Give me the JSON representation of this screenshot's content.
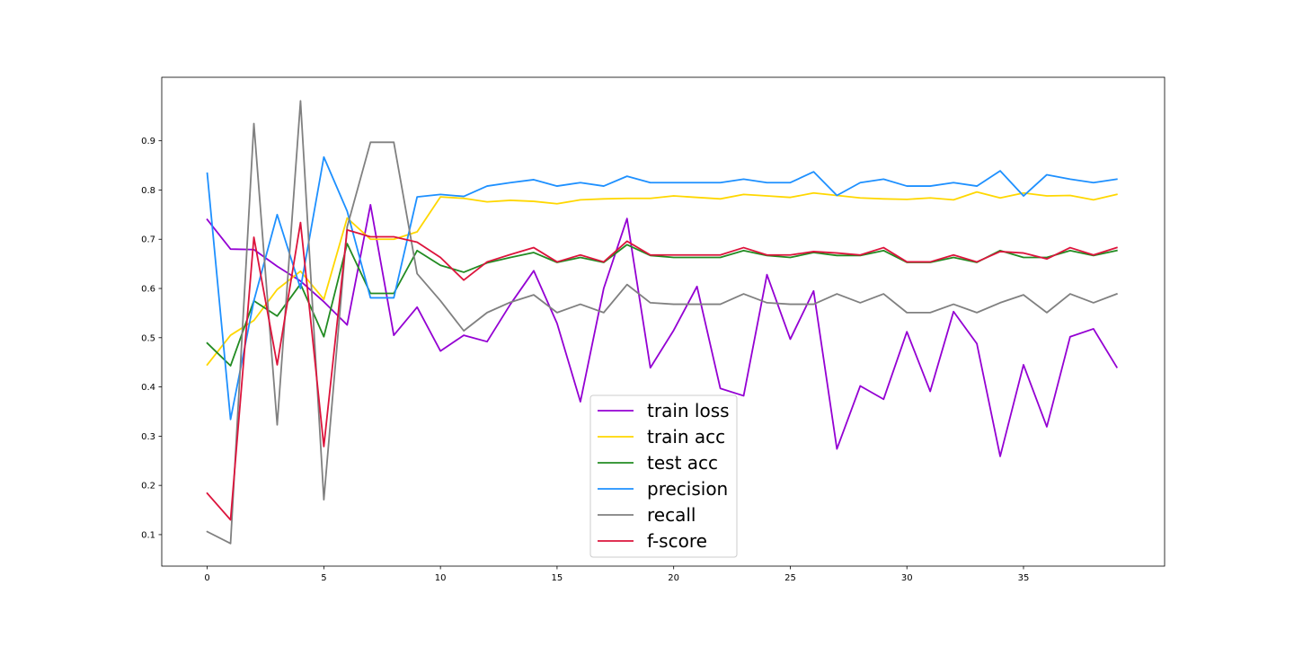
{
  "chart_data": {
    "type": "line",
    "title": "",
    "xlabel": "",
    "ylabel": "",
    "xlim": [
      -1.95,
      41.05
    ],
    "ylim": [
      0.036,
      1.029
    ],
    "grid": false,
    "legend_position": "lower-center",
    "x_ticks": [
      0,
      5,
      10,
      15,
      20,
      25,
      30,
      35
    ],
    "y_ticks": [
      0.1,
      0.2,
      0.3,
      0.4,
      0.5,
      0.6,
      0.7,
      0.8,
      0.9
    ],
    "x_tick_labels": [
      "0",
      "5",
      "10",
      "15",
      "20",
      "25",
      "30",
      "35"
    ],
    "y_tick_labels": [
      "0.1",
      "0.2",
      "0.3",
      "0.4",
      "0.5",
      "0.6",
      "0.7",
      "0.8",
      "0.9"
    ],
    "x": [
      0,
      1,
      2,
      3,
      4,
      5,
      6,
      7,
      8,
      9,
      10,
      11,
      12,
      13,
      14,
      15,
      16,
      17,
      18,
      19,
      20,
      21,
      22,
      23,
      24,
      25,
      26,
      27,
      28,
      29,
      30,
      31,
      32,
      33,
      34,
      35,
      36,
      37,
      38,
      39
    ],
    "series": [
      {
        "name": "train loss",
        "color": "#9400D3",
        "values": [
          0.74,
          0.68,
          0.679,
          0.645,
          0.615,
          0.573,
          0.526,
          0.77,
          0.505,
          0.562,
          0.473,
          0.505,
          0.492,
          0.568,
          0.636,
          0.529,
          0.37,
          0.6,
          0.742,
          0.439,
          0.515,
          0.604,
          0.397,
          0.382,
          0.628,
          0.497,
          0.595,
          0.274,
          0.402,
          0.375,
          0.512,
          0.391,
          0.553,
          0.488,
          0.259,
          0.445,
          0.319,
          0.502,
          0.518,
          0.44
        ]
      },
      {
        "name": "train acc",
        "color": "#FFD700",
        "values": [
          0.445,
          0.505,
          0.535,
          0.598,
          0.635,
          0.578,
          0.743,
          0.7,
          0.7,
          0.715,
          0.786,
          0.783,
          0.776,
          0.779,
          0.777,
          0.772,
          0.78,
          0.782,
          0.783,
          0.783,
          0.788,
          0.785,
          0.782,
          0.791,
          0.788,
          0.785,
          0.794,
          0.789,
          0.784,
          0.782,
          0.781,
          0.784,
          0.78,
          0.796,
          0.784,
          0.794,
          0.788,
          0.789,
          0.78,
          0.791
        ]
      },
      {
        "name": "test acc",
        "color": "#228B22",
        "values": [
          0.489,
          0.443,
          0.575,
          0.544,
          0.609,
          0.502,
          0.691,
          0.59,
          0.59,
          0.677,
          0.647,
          0.633,
          0.652,
          0.663,
          0.673,
          0.653,
          0.663,
          0.653,
          0.689,
          0.667,
          0.663,
          0.663,
          0.663,
          0.677,
          0.667,
          0.663,
          0.673,
          0.667,
          0.667,
          0.677,
          0.653,
          0.653,
          0.663,
          0.653,
          0.677,
          0.663,
          0.663,
          0.677,
          0.667,
          0.677
        ]
      },
      {
        "name": "precision",
        "color": "#1E90FF",
        "values": [
          0.834,
          0.334,
          0.575,
          0.75,
          0.6,
          0.867,
          0.757,
          0.581,
          0.581,
          0.786,
          0.791,
          0.787,
          0.808,
          0.815,
          0.821,
          0.808,
          0.815,
          0.808,
          0.828,
          0.815,
          0.815,
          0.815,
          0.815,
          0.822,
          0.815,
          0.815,
          0.837,
          0.789,
          0.815,
          0.822,
          0.808,
          0.808,
          0.815,
          0.808,
          0.839,
          0.788,
          0.831,
          0.822,
          0.815,
          0.822
        ]
      },
      {
        "name": "recall",
        "color": "#808080",
        "values": [
          0.106,
          0.082,
          0.935,
          0.323,
          0.981,
          0.171,
          0.725,
          0.897,
          0.897,
          0.63,
          0.575,
          0.514,
          0.551,
          0.572,
          0.587,
          0.551,
          0.568,
          0.551,
          0.608,
          0.571,
          0.568,
          0.568,
          0.568,
          0.589,
          0.571,
          0.568,
          0.568,
          0.589,
          0.571,
          0.589,
          0.551,
          0.551,
          0.568,
          0.551,
          0.571,
          0.587,
          0.551,
          0.589,
          0.571,
          0.589
        ]
      },
      {
        "name": "f-score",
        "color": "#DC143C",
        "values": [
          0.184,
          0.13,
          0.704,
          0.445,
          0.734,
          0.279,
          0.719,
          0.705,
          0.705,
          0.694,
          0.663,
          0.617,
          0.654,
          0.669,
          0.683,
          0.654,
          0.668,
          0.654,
          0.696,
          0.668,
          0.668,
          0.668,
          0.668,
          0.683,
          0.668,
          0.668,
          0.675,
          0.672,
          0.668,
          0.683,
          0.654,
          0.654,
          0.668,
          0.654,
          0.675,
          0.672,
          0.66,
          0.683,
          0.668,
          0.683
        ]
      }
    ]
  }
}
